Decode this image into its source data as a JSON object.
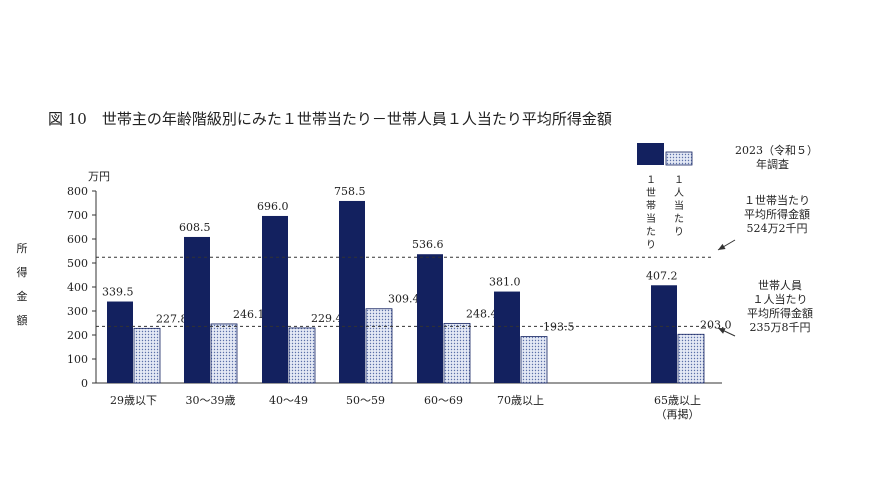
{
  "chart_data": {
    "type": "bar",
    "title": "図 10　世帯主の年齢階級別にみた１世帯当たり－世帯人員１人当たり平均所得金額",
    "ylabel_unit": "万円",
    "ylabel": "所得金額",
    "ylim": [
      0,
      800
    ],
    "yticks": [
      0,
      100,
      200,
      300,
      400,
      500,
      600,
      700,
      800
    ],
    "categories": [
      {
        "label": "29歳以下",
        "label2": ""
      },
      {
        "label": "30～39歳",
        "label2": ""
      },
      {
        "label": "40～49",
        "label2": ""
      },
      {
        "label": "50～59",
        "label2": ""
      },
      {
        "label": "60～69",
        "label2": ""
      },
      {
        "label": "70歳以上",
        "label2": ""
      },
      {
        "label": "65歳以上",
        "label2": "（再掲）"
      }
    ],
    "series": [
      {
        "name": "１世帯当たり",
        "color": "#13215f",
        "values": [
          339.5,
          608.5,
          696.0,
          758.5,
          536.6,
          381.0,
          407.2
        ],
        "labels": [
          "339.5",
          "608.5",
          "696.0",
          "758.5",
          "536.6",
          "381.0",
          "407.2"
        ]
      },
      {
        "name": "１人当たり",
        "color": "#dde4f3",
        "values": [
          227.8,
          246.1,
          229.4,
          309.4,
          248.4,
          193.5,
          203.0
        ],
        "labels": [
          "227.8",
          "246.1",
          "229.4",
          "309.4",
          "248.4",
          "193.5",
          "203.0"
        ]
      }
    ],
    "reference_lines": [
      {
        "value": 524.2,
        "text": [
          "１世帯当たり",
          "平均所得金額",
          "524万2千円"
        ]
      },
      {
        "value": 235.8,
        "text": [
          "世帯人員",
          "１人当たり",
          "平均所得金額",
          "235万8千円"
        ]
      }
    ],
    "survey_note": [
      "2023（令和５）",
      "年調査"
    ],
    "grid": false,
    "legend_position": "top-right"
  }
}
